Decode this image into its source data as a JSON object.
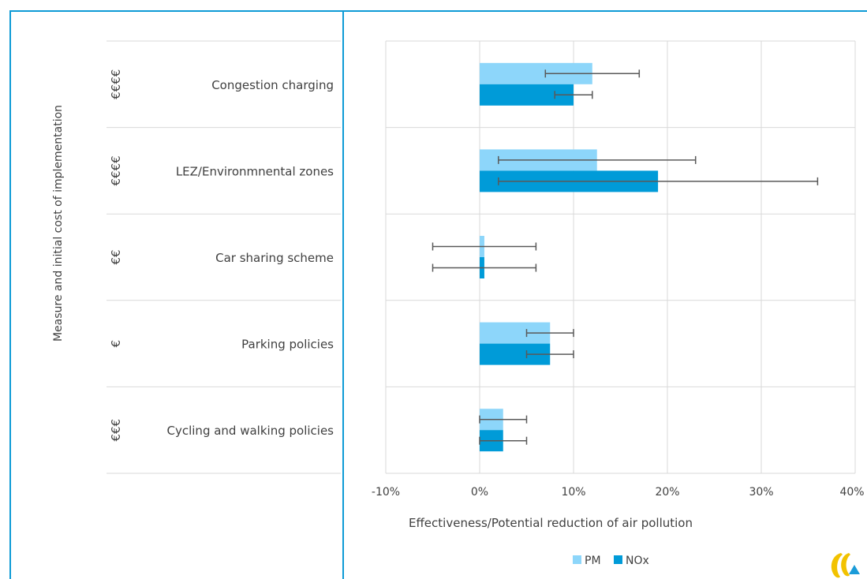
{
  "chart_data": {
    "type": "bar",
    "orientation": "horizontal",
    "y_axis_title": "Measure and initial cost of implementation",
    "xlabel": "Effectiveness/Potential reduction of air pollution",
    "categories": [
      "Congestion charging",
      "LEZ/Environmnental zones",
      "Car sharing scheme",
      "Parking policies",
      "Cycling and walking policies"
    ],
    "cost_labels": [
      "€€€€",
      "€€€€",
      "€€",
      "€",
      "€€€"
    ],
    "series": [
      {
        "name": "PM",
        "color": "#8dd6fa",
        "values": [
          0.12,
          0.125,
          0.005,
          0.075,
          0.025
        ],
        "error_low": [
          0.07,
          0.02,
          -0.05,
          0.05,
          0.0
        ],
        "error_high": [
          0.17,
          0.23,
          0.06,
          0.1,
          0.05
        ]
      },
      {
        "name": "NOx",
        "color": "#009bd8",
        "values": [
          0.1,
          0.19,
          0.005,
          0.075,
          0.025
        ],
        "error_low": [
          0.08,
          0.02,
          -0.05,
          0.05,
          0.0
        ],
        "error_high": [
          0.12,
          0.36,
          0.06,
          0.1,
          0.05
        ]
      }
    ],
    "xlim": [
      -0.1,
      0.4
    ],
    "xticks": [
      -0.1,
      0,
      0.1,
      0.2,
      0.3,
      0.4
    ],
    "xtick_labels": [
      "-10%",
      "0%",
      "10%",
      "20%",
      "30%",
      "40%"
    ],
    "grid": true,
    "legend": {
      "placement": "bottom",
      "entries": [
        "PM",
        "NOx"
      ]
    }
  },
  "colors": {
    "frame": "#0e9bd6",
    "grid": "#d9d9d9",
    "error_bar": "#595959",
    "logo_yellow": "#f2c200",
    "logo_blue": "#1a9bd8"
  },
  "icons": {
    "logo": "eea-logo-icon"
  }
}
